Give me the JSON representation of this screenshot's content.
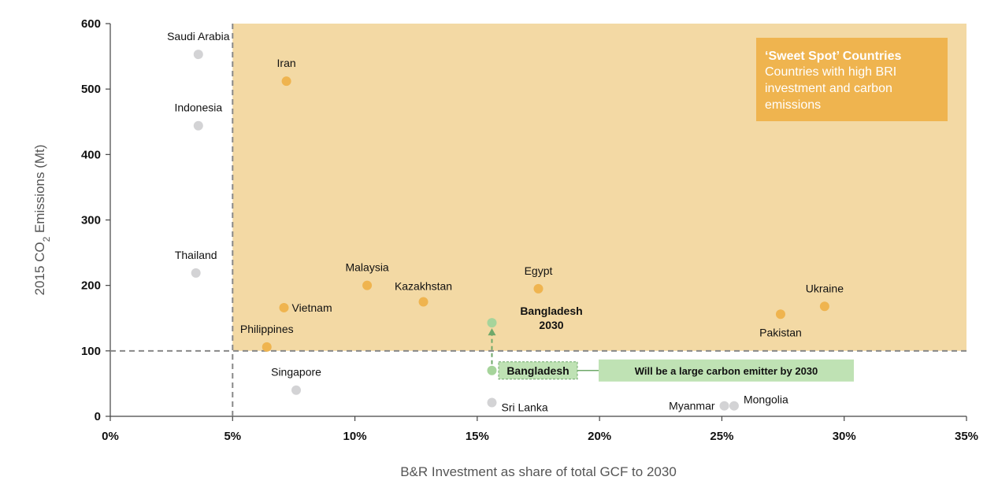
{
  "colors": {
    "sweet_spot_fill": "#f3d9a4",
    "orange_point": "#efb44f",
    "gray_point": "#d3d3d5",
    "green_point": "#a6d49b",
    "green_arrow": "#6fa86a",
    "callout_fill": "#efb44f",
    "emitter_box": "#bfe2b4",
    "dashed_line": "#888888"
  },
  "callout": {
    "title": "‘Sweet Spot’ Countries",
    "lines": [
      "Countries with high BRI",
      "investment and carbon",
      "emissions"
    ]
  },
  "annotation": {
    "bangladesh_2030_lines": [
      "Bangladesh",
      "2030"
    ],
    "bangladesh_label": "Bangladesh",
    "emitter_text": "Will be a large carbon emitter by 2030"
  },
  "chart_data": {
    "type": "scatter",
    "title": "",
    "xlabel": "B&R Investment as share of total GCF to 2030",
    "ylabel_main": "2015 CO",
    "ylabel_sub": "2",
    "ylabel_tail": " Emissions (Mt)",
    "xlim": [
      0,
      35
    ],
    "ylim": [
      0,
      600
    ],
    "x_ticks": [
      0,
      5,
      10,
      15,
      20,
      25,
      30,
      35
    ],
    "x_tick_labels": [
      "0%",
      "5%",
      "10%",
      "15%",
      "20%",
      "25%",
      "30%",
      "35%"
    ],
    "y_ticks": [
      0,
      100,
      200,
      300,
      400,
      500,
      600
    ],
    "y_tick_labels": [
      "0",
      "100",
      "200",
      "300",
      "400",
      "500",
      "600"
    ],
    "thresholds": {
      "x": 5,
      "y": 100
    },
    "points": [
      {
        "name": "Saudi Arabia",
        "x": 3.6,
        "y": 553,
        "group": "gray",
        "label_pos": "above"
      },
      {
        "name": "Indonesia",
        "x": 3.6,
        "y": 444,
        "group": "gray",
        "label_pos": "above"
      },
      {
        "name": "Thailand",
        "x": 3.5,
        "y": 219,
        "group": "gray",
        "label_pos": "above"
      },
      {
        "name": "Singapore",
        "x": 7.6,
        "y": 40,
        "group": "gray",
        "label_pos": "above"
      },
      {
        "name": "Sri Lanka",
        "x": 15.6,
        "y": 21,
        "group": "gray",
        "label_pos": "right-below"
      },
      {
        "name": "Myanmar",
        "x": 25.1,
        "y": 16,
        "group": "gray",
        "label_pos": "left"
      },
      {
        "name": "Mongolia",
        "x": 25.5,
        "y": 16,
        "group": "gray",
        "label_pos": "right-above"
      },
      {
        "name": "Iran",
        "x": 7.2,
        "y": 512,
        "group": "orange",
        "label_pos": "above"
      },
      {
        "name": "Malaysia",
        "x": 10.5,
        "y": 200,
        "group": "orange",
        "label_pos": "above"
      },
      {
        "name": "Kazakhstan",
        "x": 12.8,
        "y": 175,
        "group": "orange",
        "label_pos": "above-right"
      },
      {
        "name": "Egypt",
        "x": 17.5,
        "y": 195,
        "group": "orange",
        "label_pos": "above"
      },
      {
        "name": "Vietnam",
        "x": 7.1,
        "y": 166,
        "group": "orange",
        "label_pos": "right"
      },
      {
        "name": "Philippines",
        "x": 6.4,
        "y": 106,
        "group": "orange",
        "label_pos": "above"
      },
      {
        "name": "Ukraine",
        "x": 29.2,
        "y": 168,
        "group": "orange",
        "label_pos": "above"
      },
      {
        "name": "Pakistan",
        "x": 27.4,
        "y": 156,
        "group": "orange",
        "label_pos": "below"
      },
      {
        "name": "Bangladesh 2030",
        "x": 15.6,
        "y": 143,
        "group": "green",
        "label_pos": "none"
      },
      {
        "name": "Bangladesh",
        "x": 15.6,
        "y": 70,
        "group": "green",
        "label_pos": "none"
      }
    ]
  }
}
